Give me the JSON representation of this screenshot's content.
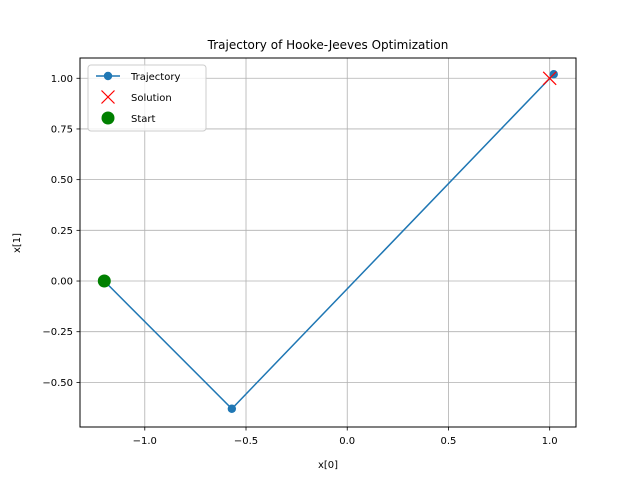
{
  "chart_data": {
    "type": "line",
    "title": "Trajectory of Hooke-Jeeves Optimization",
    "xlabel": "x[0]",
    "ylabel": "x[1]",
    "xlim": [
      -1.32,
      1.13
    ],
    "ylim": [
      -0.72,
      1.1
    ],
    "grid": true,
    "legend_position": "upper-left",
    "xticks": [
      -1.0,
      -0.5,
      0.0,
      0.5,
      1.0
    ],
    "xtick_labels": [
      "−1.0",
      "−0.5",
      "0.0",
      "0.5",
      "1.0"
    ],
    "yticks": [
      -0.5,
      -0.25,
      0.0,
      0.25,
      0.5,
      0.75,
      1.0
    ],
    "ytick_labels": [
      "−0.50",
      "−0.25",
      "0.00",
      "0.25",
      "0.50",
      "0.75",
      "1.00"
    ],
    "series": [
      {
        "name": "Trajectory",
        "kind": "line-marker",
        "color": "#1f77b4",
        "points": [
          [
            -1.2,
            0.0
          ],
          [
            -0.57,
            -0.63
          ],
          [
            1.02,
            1.02
          ]
        ]
      },
      {
        "name": "Solution",
        "kind": "x-marker",
        "color": "#ff0000",
        "points": [
          [
            1.0,
            1.0
          ]
        ]
      },
      {
        "name": "Start",
        "kind": "big-circle",
        "color": "#008000",
        "points": [
          [
            -1.2,
            0.0
          ]
        ]
      }
    ]
  }
}
